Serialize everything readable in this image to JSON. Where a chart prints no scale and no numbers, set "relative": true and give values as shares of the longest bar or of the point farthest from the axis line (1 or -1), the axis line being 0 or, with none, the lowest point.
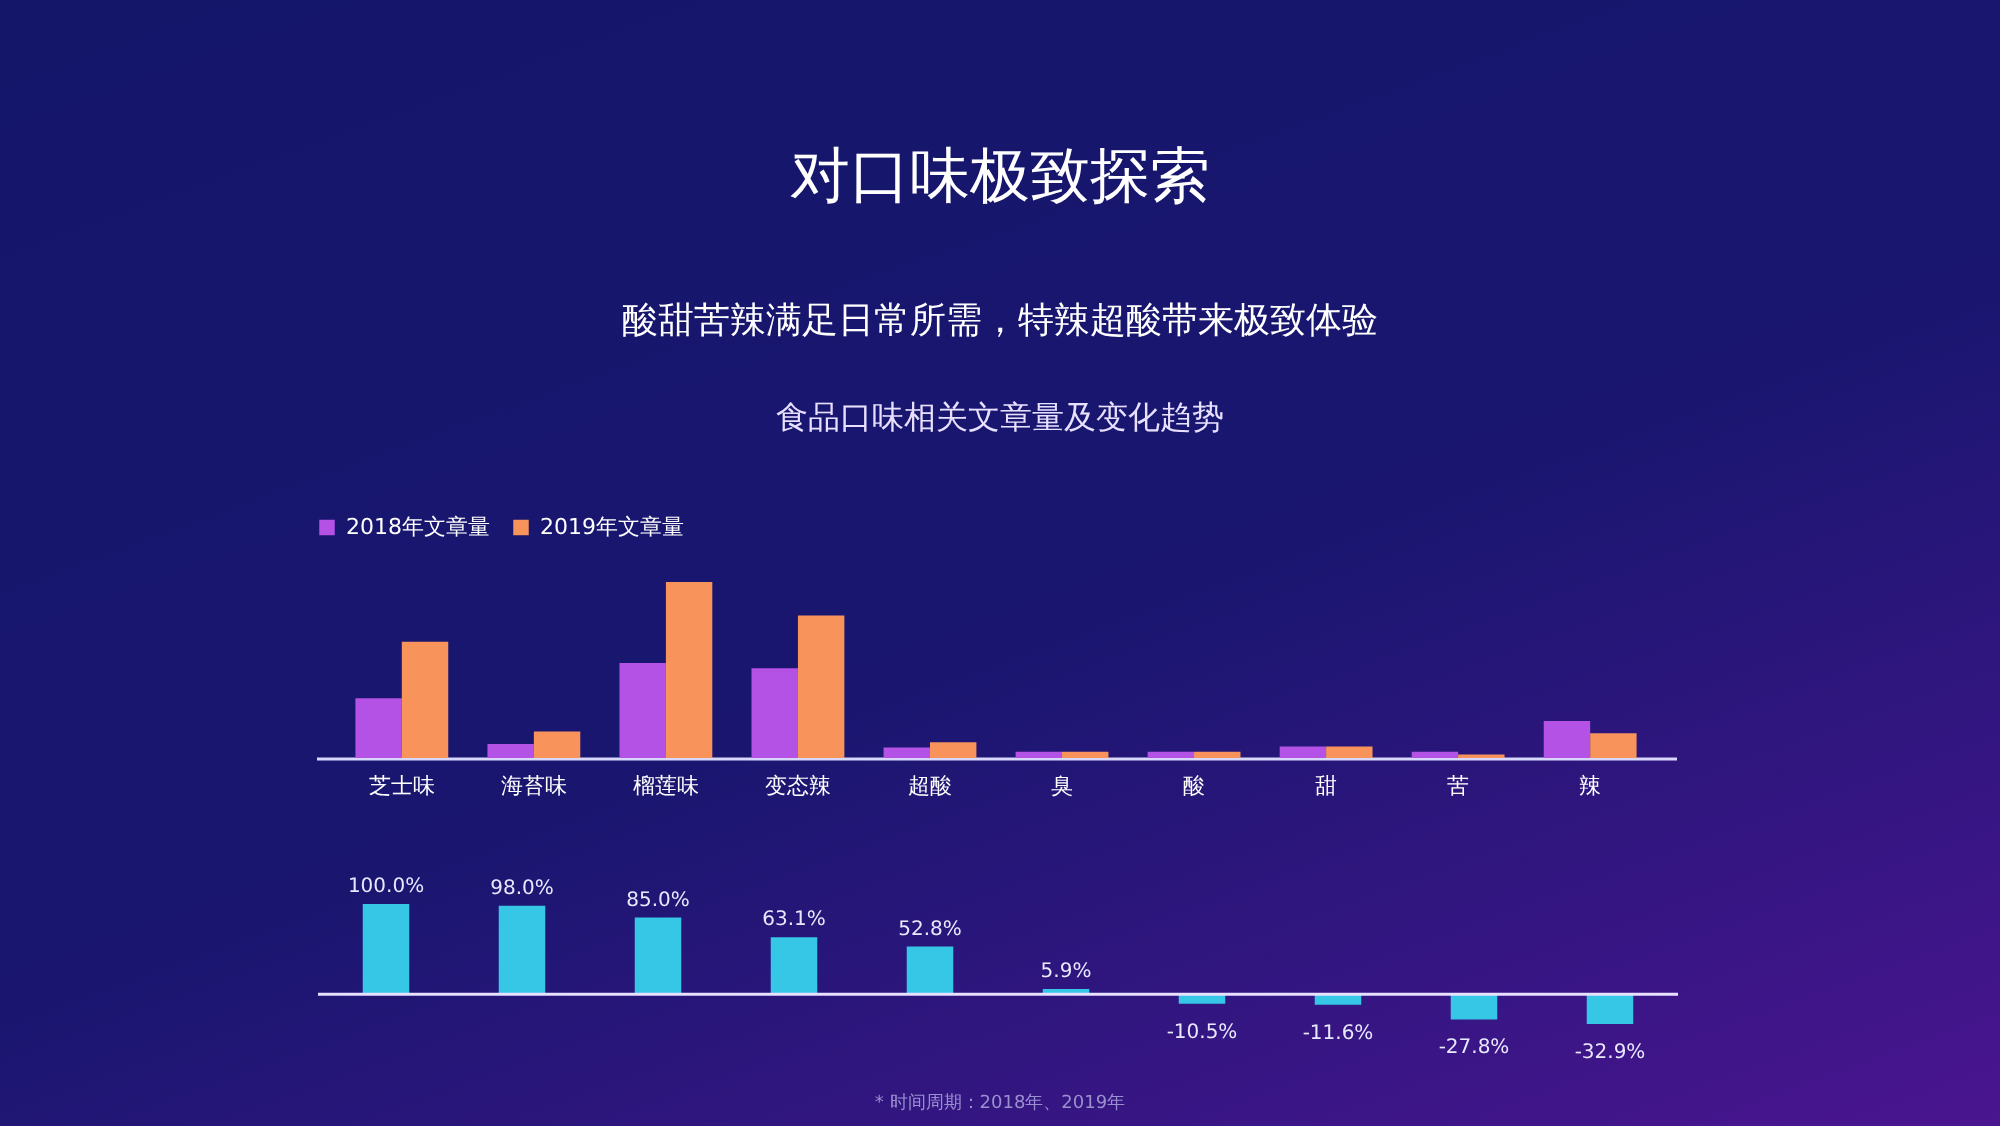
{
  "chart_data": [
    {
      "type": "bar",
      "title": "对口味极致探索",
      "subtitle": "酸甜苦辣满足日常所需，特辣超酸带来极致体验",
      "annotations": [
        "食品口味相关文章量及变化趋势"
      ],
      "categories": [
        "芝士味",
        "海苔味",
        "榴莲味",
        "变态辣",
        "超酸",
        "臭",
        "酸",
        "甜",
        "苦",
        "辣"
      ],
      "relative": true,
      "legend": "top",
      "series": [
        {
          "name": "2018年文章量",
          "color": "#b452e6",
          "values": [
            0.34,
            0.08,
            0.54,
            0.51,
            0.06,
            0.035,
            0.035,
            0.065,
            0.035,
            0.21
          ]
        },
        {
          "name": "2019年文章量",
          "color": "#f8935c",
          "values": [
            0.66,
            0.15,
            1,
            0.81,
            0.09,
            0.035,
            0.035,
            0.065,
            0.02,
            0.14
          ]
        }
      ]
    },
    {
      "type": "bar",
      "categories": [
        null,
        null,
        null,
        null,
        null,
        null,
        null,
        null,
        null,
        null
      ],
      "tick_labels": false,
      "values": [
        100,
        98,
        85,
        63.1,
        52.8,
        5.9,
        -10.5,
        -11.6,
        -27.8,
        -32.9
      ],
      "color": "#36c6e6",
      "value_labels": [
        "100.0%",
        "98.0%",
        "85.0%",
        "63.1%",
        "52.8%",
        "5.9%",
        "-10.5%",
        "-11.6%",
        "-27.8%",
        "-32.9%"
      ],
      "annotations": [
        "* 时间周期：2018年、2019年"
      ]
    }
  ]
}
